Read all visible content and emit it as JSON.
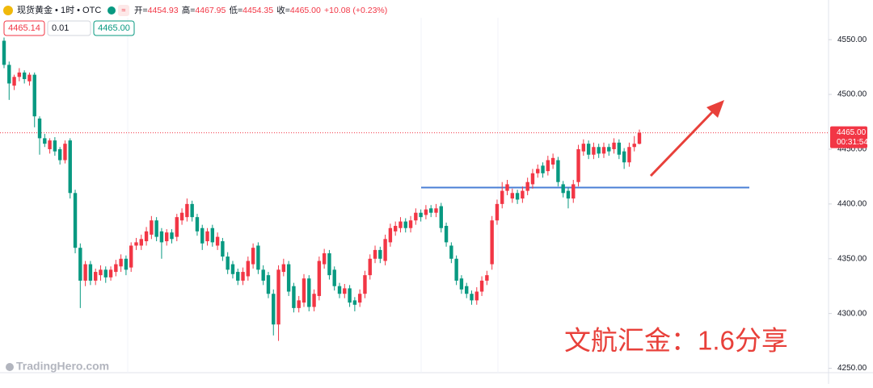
{
  "chart_data": {
    "type": "candlestick",
    "symbol": "现货黄金 • 1时 • OTC",
    "readout": [
      {
        "label": "开=",
        "value": "4454.93"
      },
      {
        "label": "高=",
        "value": "4467.95"
      },
      {
        "label": "低=",
        "value": "4454.35"
      },
      {
        "label": "收=",
        "value": "4465.00"
      }
    ],
    "change": "+10.08 (+0.23%)",
    "order_panel": [
      "4465.14",
      "0.01",
      "4465.00"
    ],
    "up_color": "#f23645",
    "down_color": "#089981",
    "ylim": [
      4246,
      4570
    ],
    "yticks": [
      {
        "value": 4250,
        "label": "4250.00"
      },
      {
        "value": 4300,
        "label": "4300.00"
      },
      {
        "value": 4350,
        "label": "4350.00"
      },
      {
        "value": 4400,
        "label": "4400.00"
      },
      {
        "value": 4450,
        "label": "4450.00"
      },
      {
        "value": 4500,
        "label": "4500.00"
      },
      {
        "value": 4550,
        "label": "4550.00"
      }
    ],
    "last_price": {
      "value": 4465,
      "label": "4465.00"
    },
    "countdown": "00:31:54",
    "hline": 4415,
    "watermark": "TradingHero.com",
    "annotation": "文航汇金：1.6分享",
    "ohlc": [
      [
        4549,
        4552,
        4524,
        4527
      ],
      [
        4527,
        4530,
        4495,
        4510
      ],
      [
        4508,
        4518,
        4504,
        4516
      ],
      [
        4516,
        4524,
        4512,
        4520
      ],
      [
        4520,
        4522,
        4510,
        4514
      ],
      [
        4512,
        4520,
        4508,
        4518
      ],
      [
        4518,
        4520,
        4470,
        4480
      ],
      [
        4478,
        4480,
        4445,
        4460
      ],
      [
        4460,
        4464,
        4452,
        4455
      ],
      [
        4450,
        4460,
        4446,
        4458
      ],
      [
        4458,
        4461,
        4444,
        4448
      ],
      [
        4450,
        4452,
        4436,
        4440
      ],
      [
        4440,
        4458,
        4437,
        4455
      ],
      [
        4458,
        4460,
        4405,
        4410
      ],
      [
        4410,
        4413,
        4355,
        4360
      ],
      [
        4360,
        4364,
        4305,
        4330
      ],
      [
        4330,
        4348,
        4325,
        4345
      ],
      [
        4345,
        4348,
        4326,
        4330
      ],
      [
        4330,
        4341,
        4326,
        4338
      ],
      [
        4335,
        4344,
        4330,
        4340
      ],
      [
        4340,
        4343,
        4328,
        4333
      ],
      [
        4333,
        4343,
        4330,
        4340
      ],
      [
        4338,
        4349,
        4334,
        4345
      ],
      [
        4343,
        4354,
        4338,
        4350
      ],
      [
        4350,
        4353,
        4335,
        4340
      ],
      [
        4342,
        4365,
        4338,
        4362
      ],
      [
        4362,
        4369,
        4358,
        4365
      ],
      [
        4362,
        4372,
        4358,
        4368
      ],
      [
        4366,
        4379,
        4362,
        4375
      ],
      [
        4372,
        4389,
        4368,
        4385
      ],
      [
        4385,
        4388,
        4366,
        4370
      ],
      [
        4375,
        4378,
        4350,
        4365
      ],
      [
        4366,
        4377,
        4362,
        4374
      ],
      [
        4374,
        4377,
        4364,
        4368
      ],
      [
        4370,
        4391,
        4366,
        4388
      ],
      [
        4385,
        4396,
        4381,
        4392
      ],
      [
        4388,
        4405,
        4384,
        4400
      ],
      [
        4400,
        4403,
        4384,
        4388
      ],
      [
        4388,
        4391,
        4371,
        4375
      ],
      [
        4378,
        4381,
        4358,
        4364
      ],
      [
        4366,
        4378,
        4362,
        4375
      ],
      [
        4378,
        4381,
        4361,
        4365
      ],
      [
        4362,
        4374,
        4358,
        4370
      ],
      [
        4366,
        4369,
        4348,
        4352
      ],
      [
        4352,
        4356,
        4336,
        4340
      ],
      [
        4345,
        4348,
        4332,
        4336
      ],
      [
        4338,
        4341,
        4326,
        4330
      ],
      [
        4330,
        4342,
        4326,
        4338
      ],
      [
        4334,
        4352,
        4330,
        4348
      ],
      [
        4345,
        4364,
        4341,
        4360
      ],
      [
        4362,
        4365,
        4336,
        4340
      ],
      [
        4340,
        4344,
        4326,
        4330
      ],
      [
        4335,
        4338,
        4314,
        4318
      ],
      [
        4318,
        4322,
        4280,
        4290
      ],
      [
        4290,
        4344,
        4275,
        4340
      ],
      [
        4338,
        4350,
        4334,
        4345
      ],
      [
        4345,
        4348,
        4316,
        4320
      ],
      [
        4325,
        4328,
        4301,
        4305
      ],
      [
        4305,
        4316,
        4301,
        4312
      ],
      [
        4310,
        4336,
        4306,
        4332
      ],
      [
        4332,
        4335,
        4302,
        4306
      ],
      [
        4306,
        4322,
        4302,
        4318
      ],
      [
        4316,
        4352,
        4312,
        4348
      ],
      [
        4345,
        4359,
        4341,
        4355
      ],
      [
        4355,
        4358,
        4331,
        4335
      ],
      [
        4340,
        4343,
        4321,
        4325
      ],
      [
        4325,
        4328,
        4314,
        4318
      ],
      [
        4318,
        4327,
        4314,
        4323
      ],
      [
        4323,
        4326,
        4306,
        4310
      ],
      [
        4312,
        4315,
        4302,
        4308
      ],
      [
        4310,
        4322,
        4306,
        4318
      ],
      [
        4318,
        4339,
        4314,
        4335
      ],
      [
        4335,
        4354,
        4331,
        4350
      ],
      [
        4350,
        4362,
        4346,
        4358
      ],
      [
        4358,
        4361,
        4346,
        4350
      ],
      [
        4348,
        4372,
        4344,
        4368
      ],
      [
        4365,
        4382,
        4361,
        4378
      ],
      [
        4375,
        4384,
        4371,
        4380
      ],
      [
        4378,
        4388,
        4374,
        4384
      ],
      [
        4384,
        4387,
        4374,
        4378
      ],
      [
        4378,
        4389,
        4374,
        4385
      ],
      [
        4385,
        4396,
        4381,
        4392
      ],
      [
        4392,
        4395,
        4384,
        4388
      ],
      [
        4390,
        4399,
        4386,
        4395
      ],
      [
        4396,
        4399,
        4388,
        4392
      ],
      [
        4392,
        4400,
        4388,
        4396
      ],
      [
        4398,
        4401,
        4374,
        4378
      ],
      [
        4380,
        4383,
        4361,
        4365
      ],
      [
        4362,
        4365,
        4346,
        4350
      ],
      [
        4350,
        4353,
        4326,
        4330
      ],
      [
        4332,
        4335,
        4318,
        4322
      ],
      [
        4325,
        4328,
        4314,
        4318
      ],
      [
        4318,
        4321,
        4308,
        4312
      ],
      [
        4312,
        4324,
        4308,
        4320
      ],
      [
        4320,
        4334,
        4316,
        4330
      ],
      [
        4330,
        4339,
        4326,
        4335
      ],
      [
        4345,
        4389,
        4340,
        4385
      ],
      [
        4385,
        4404,
        4381,
        4400
      ],
      [
        4400,
        4420,
        4396,
        4412
      ],
      [
        4412,
        4422,
        4408,
        4418
      ],
      [
        4405,
        4414,
        4401,
        4410
      ],
      [
        4410,
        4413,
        4400,
        4404
      ],
      [
        4405,
        4416,
        4401,
        4412
      ],
      [
        4412,
        4424,
        4408,
        4420
      ],
      [
        4418,
        4432,
        4414,
        4428
      ],
      [
        4428,
        4436,
        4424,
        4432
      ],
      [
        4435,
        4438,
        4424,
        4428
      ],
      [
        4430,
        4444,
        4426,
        4440
      ],
      [
        4436,
        4446,
        4432,
        4442
      ],
      [
        4440,
        4443,
        4416,
        4420
      ],
      [
        4418,
        4421,
        4406,
        4410
      ],
      [
        4412,
        4415,
        4396,
        4405
      ],
      [
        4405,
        4422,
        4401,
        4418
      ],
      [
        4420,
        4454,
        4416,
        4450
      ],
      [
        4448,
        4459,
        4444,
        4455
      ],
      [
        4455,
        4458,
        4441,
        4445
      ],
      [
        4445,
        4456,
        4441,
        4452
      ],
      [
        4452,
        4455,
        4442,
        4446
      ],
      [
        4446,
        4456,
        4442,
        4452
      ],
      [
        4452,
        4455,
        4444,
        4448
      ],
      [
        4450,
        4460,
        4446,
        4456
      ],
      [
        4456,
        4459,
        4441,
        4445
      ],
      [
        4448,
        4451,
        4432,
        4438
      ],
      [
        4438,
        4456,
        4434,
        4452
      ],
      [
        4452,
        4462,
        4448,
        4455
      ],
      [
        4454.93,
        4467.95,
        4454.35,
        4465
      ]
    ]
  }
}
